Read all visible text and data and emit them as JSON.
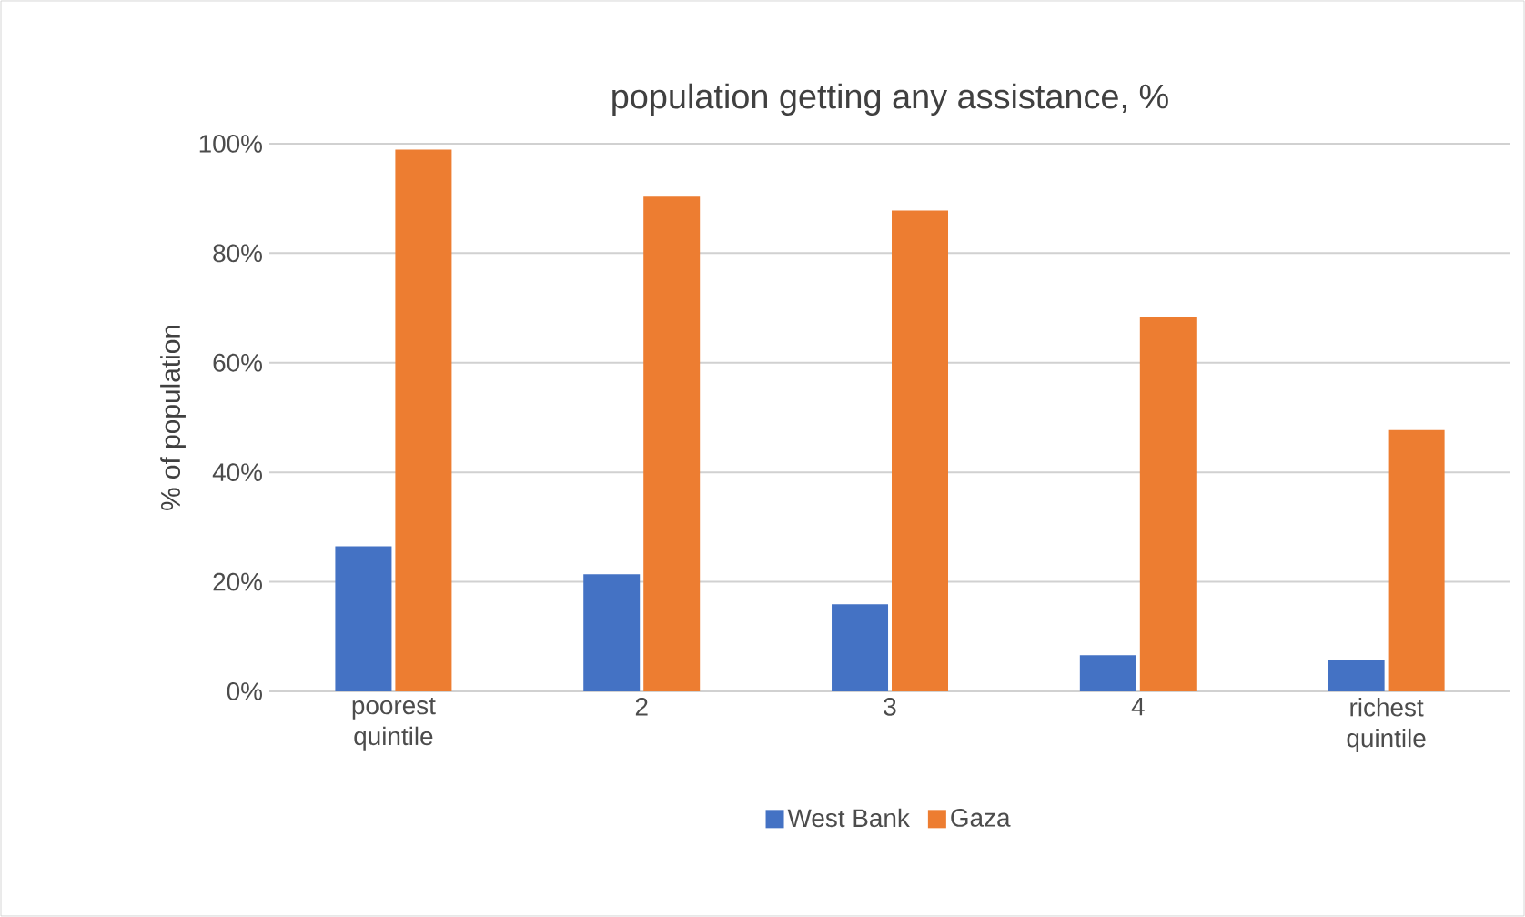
{
  "chart_data": {
    "type": "bar",
    "title": "population getting any assistance, %",
    "ylabel": "% of population",
    "categories": [
      "poorest quintile",
      "2",
      "3",
      "4",
      "richest quintile"
    ],
    "series": [
      {
        "name": "West Bank",
        "color": "#4472c4",
        "values": [
          26.5,
          21.4,
          15.9,
          6.6,
          5.8
        ]
      },
      {
        "name": "Gaza",
        "color": "#ed7d31",
        "values": [
          98.9,
          90.3,
          87.8,
          68.3,
          47.7
        ]
      }
    ],
    "ylim": [
      0,
      100
    ],
    "yticks": [
      {
        "value": 0,
        "label": "0%"
      },
      {
        "value": 20,
        "label": "20%"
      },
      {
        "value": 40,
        "label": "40%"
      },
      {
        "value": 60,
        "label": "60%"
      },
      {
        "value": 80,
        "label": "80%"
      },
      {
        "value": 100,
        "label": "100%"
      }
    ],
    "grid": "y",
    "legend": "bottom"
  }
}
